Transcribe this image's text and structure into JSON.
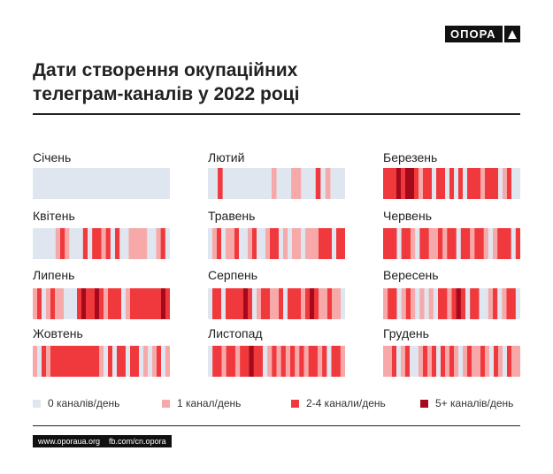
{
  "brand": {
    "logo_text": "ОПОРА",
    "logo_icon": "triangle-icon"
  },
  "title_lines": [
    "Дати створення окупаційних",
    "телеграм-каналів у 2022 році"
  ],
  "footer": {
    "site": "www.oporaua.org",
    "fb": "fb.com/cn.opora"
  },
  "colors": {
    "0": "#dfe6ef",
    "1": "#f7a9a9",
    "2": "#f0393c",
    "3": "#a5091c"
  },
  "chart_data": {
    "type": "heatmap",
    "title": "Дати створення окупаційних телеграм-каналів у 2022 році",
    "legend": [
      {
        "level": 0,
        "label": "0 каналів/день"
      },
      {
        "level": 1,
        "label": "1 канал/день"
      },
      {
        "level": 2,
        "label": "2-4 канали/день"
      },
      {
        "level": 3,
        "label": "5+ каналів/день"
      }
    ],
    "months": [
      {
        "name": "Січень",
        "days": [
          0,
          0,
          0,
          0,
          0,
          0,
          0,
          0,
          0,
          0,
          0,
          0,
          0,
          0,
          0,
          0,
          0,
          0,
          0,
          0,
          0,
          0,
          0,
          0,
          0,
          0,
          0,
          0,
          0,
          0,
          0
        ]
      },
      {
        "name": "Лютий",
        "days": [
          0,
          0,
          2,
          0,
          0,
          0,
          0,
          0,
          0,
          0,
          0,
          0,
          0,
          1,
          0,
          0,
          0,
          1,
          1,
          0,
          0,
          0,
          2,
          0,
          1,
          0,
          0,
          0
        ]
      },
      {
        "name": "Березень",
        "days": [
          2,
          2,
          2,
          3,
          2,
          3,
          3,
          2,
          1,
          2,
          2,
          0,
          2,
          2,
          0,
          2,
          0,
          2,
          0,
          2,
          2,
          2,
          1,
          2,
          2,
          2,
          0,
          1,
          2,
          0,
          0
        ]
      },
      {
        "name": "Квітень",
        "days": [
          0,
          0,
          0,
          0,
          0,
          1,
          2,
          1,
          0,
          0,
          0,
          2,
          0,
          2,
          2,
          1,
          2,
          0,
          2,
          0,
          0,
          1,
          1,
          1,
          1,
          0,
          0,
          1,
          2,
          0
        ]
      },
      {
        "name": "Травень",
        "days": [
          0,
          1,
          2,
          0,
          1,
          1,
          2,
          0,
          0,
          1,
          2,
          0,
          0,
          1,
          2,
          2,
          0,
          1,
          0,
          1,
          1,
          0,
          1,
          1,
          1,
          2,
          2,
          2,
          0,
          2,
          2
        ]
      },
      {
        "name": "Червень",
        "days": [
          2,
          2,
          2,
          0,
          2,
          2,
          1,
          0,
          2,
          2,
          1,
          1,
          2,
          1,
          2,
          2,
          0,
          2,
          2,
          1,
          2,
          2,
          1,
          0,
          1,
          2,
          2,
          2,
          0,
          2
        ]
      },
      {
        "name": "Липень",
        "days": [
          1,
          2,
          0,
          1,
          2,
          1,
          1,
          0,
          0,
          0,
          2,
          3,
          2,
          2,
          3,
          2,
          1,
          2,
          2,
          2,
          0,
          1,
          2,
          2,
          2,
          2,
          2,
          2,
          2,
          3,
          2
        ]
      },
      {
        "name": "Серпень",
        "days": [
          0,
          2,
          2,
          0,
          2,
          2,
          2,
          2,
          3,
          2,
          0,
          1,
          2,
          2,
          1,
          1,
          2,
          0,
          2,
          2,
          2,
          1,
          2,
          3,
          2,
          1,
          1,
          2,
          1,
          1,
          0
        ]
      },
      {
        "name": "Вересень",
        "days": [
          1,
          2,
          2,
          0,
          1,
          2,
          1,
          0,
          1,
          0,
          1,
          0,
          2,
          2,
          1,
          2,
          3,
          2,
          0,
          2,
          2,
          0,
          0,
          1,
          2,
          0,
          1,
          2,
          2,
          0
        ]
      },
      {
        "name": "Жовтень",
        "days": [
          1,
          0,
          2,
          1,
          2,
          2,
          2,
          2,
          2,
          2,
          2,
          2,
          2,
          2,
          2,
          1,
          0,
          2,
          0,
          2,
          2,
          0,
          2,
          2,
          0,
          1,
          0,
          1,
          2,
          0,
          1
        ]
      },
      {
        "name": "Листопад",
        "days": [
          0,
          2,
          2,
          1,
          2,
          2,
          1,
          2,
          2,
          3,
          2,
          2,
          0,
          1,
          2,
          1,
          2,
          1,
          2,
          1,
          2,
          1,
          2,
          2,
          1,
          2,
          0,
          2,
          2,
          1
        ]
      },
      {
        "name": "Грудень",
        "days": [
          1,
          1,
          2,
          0,
          1,
          2,
          0,
          0,
          1,
          2,
          1,
          2,
          0,
          2,
          1,
          2,
          1,
          0,
          1,
          2,
          1,
          1,
          2,
          1,
          0,
          2,
          1,
          0,
          2,
          1,
          1
        ]
      }
    ]
  }
}
